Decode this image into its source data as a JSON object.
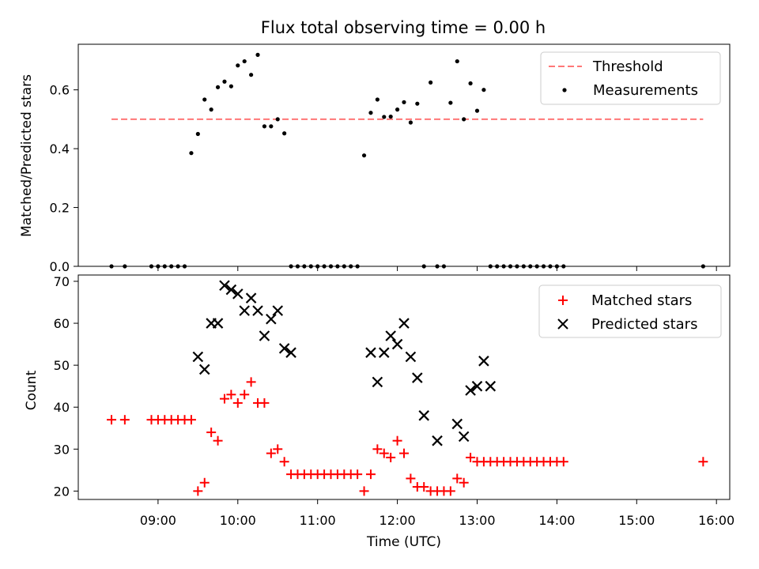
{
  "title": "Flux total observing time = 0.00 h",
  "chart_data": [
    {
      "type": "scatter",
      "title": "Flux total observing time = 0.00 h",
      "xlabel": "",
      "ylabel": "Matched/Predicted stars",
      "xlim": [
        "08:00",
        "16:10"
      ],
      "ylim": [
        0,
        0.755
      ],
      "yticks": [
        0.0,
        0.2,
        0.4,
        0.6
      ],
      "yticks_labels": [
        "0.0",
        "0.2",
        "0.4",
        "0.6"
      ],
      "xticks": [
        "09:00",
        "10:00",
        "11:00",
        "12:00",
        "13:00",
        "14:00",
        "15:00",
        "16:00"
      ],
      "xtick_labels_shown": false,
      "legend": {
        "position": "top-right",
        "entries": [
          "Threshold",
          "Measurements"
        ]
      },
      "series": [
        {
          "name": "Threshold",
          "kind": "dashed-line",
          "color": "#ff7777",
          "x": [
            "08:25",
            "15:50"
          ],
          "y": [
            0.5,
            0.5
          ]
        },
        {
          "name": "Measurements",
          "kind": "points",
          "color": "#000000",
          "x": [
            "08:25",
            "08:35",
            "08:55",
            "09:00",
            "09:05",
            "09:10",
            "09:15",
            "09:20",
            "09:25",
            "09:30",
            "09:35",
            "09:40",
            "09:45",
            "09:50",
            "09:55",
            "10:00",
            "10:05",
            "10:10",
            "10:15",
            "10:20",
            "10:25",
            "10:30",
            "10:35",
            "10:40",
            "10:45",
            "10:50",
            "10:55",
            "11:00",
            "11:05",
            "11:10",
            "11:15",
            "11:20",
            "11:25",
            "11:30",
            "11:35",
            "11:40",
            "11:45",
            "11:50",
            "11:55",
            "12:00",
            "12:05",
            "12:10",
            "12:15",
            "12:20",
            "12:25",
            "12:30",
            "12:35",
            "12:40",
            "12:45",
            "12:50",
            "12:55",
            "13:00",
            "13:05",
            "13:10",
            "13:15",
            "13:20",
            "13:25",
            "13:30",
            "13:35",
            "13:40",
            "13:45",
            "13:50",
            "13:55",
            "14:00",
            "14:05",
            "15:50"
          ],
          "y": [
            0.0,
            0.0,
            0.0,
            0.0,
            0.0,
            0.0,
            0.0,
            0.0,
            0.385,
            0.45,
            0.567,
            0.533,
            0.609,
            0.628,
            0.612,
            0.683,
            0.697,
            0.651,
            0.719,
            0.476,
            0.476,
            0.5,
            0.452,
            0.0,
            0.0,
            0.0,
            0.0,
            0.0,
            0.0,
            0.0,
            0.0,
            0.0,
            0.0,
            0.0,
            0.377,
            0.522,
            0.567,
            0.508,
            0.509,
            0.533,
            0.558,
            0.489,
            0.553,
            0.0,
            0.625,
            0.0,
            0.0,
            0.556,
            0.697,
            0.5,
            0.622,
            0.529,
            0.6,
            0.0,
            0.0,
            0.0,
            0.0,
            0.0,
            0.0,
            0.0,
            0.0,
            0.0,
            0.0,
            0.0,
            0.0,
            0.0
          ]
        }
      ]
    },
    {
      "type": "scatter",
      "xlabel": "Time (UTC)",
      "ylabel": "Count",
      "xlim": [
        "08:00",
        "16:10"
      ],
      "ylim": [
        18,
        71.5
      ],
      "yticks": [
        20,
        30,
        40,
        50,
        60,
        70
      ],
      "yticks_labels": [
        "20",
        "30",
        "40",
        "50",
        "60",
        "70"
      ],
      "xticks": [
        "09:00",
        "10:00",
        "11:00",
        "12:00",
        "13:00",
        "14:00",
        "15:00",
        "16:00"
      ],
      "xtick_labels": [
        "09:00",
        "10:00",
        "11:00",
        "12:00",
        "13:00",
        "14:00",
        "15:00",
        "16:00"
      ],
      "legend": {
        "position": "top-right",
        "entries": [
          "Matched stars",
          "Predicted stars"
        ]
      },
      "series": [
        {
          "name": "Matched stars",
          "marker": "+",
          "color": "#ff0000",
          "x": [
            "08:25",
            "08:35",
            "08:55",
            "09:00",
            "09:05",
            "09:10",
            "09:15",
            "09:20",
            "09:25",
            "09:30",
            "09:35",
            "09:40",
            "09:45",
            "09:50",
            "09:55",
            "10:00",
            "10:05",
            "10:10",
            "10:15",
            "10:20",
            "10:25",
            "10:30",
            "10:35",
            "10:40",
            "10:45",
            "10:50",
            "10:55",
            "11:00",
            "11:05",
            "11:10",
            "11:15",
            "11:20",
            "11:25",
            "11:30",
            "11:35",
            "11:40",
            "11:45",
            "11:50",
            "11:55",
            "12:00",
            "12:05",
            "12:10",
            "12:15",
            "12:20",
            "12:25",
            "12:30",
            "12:35",
            "12:40",
            "12:45",
            "12:50",
            "12:55",
            "13:00",
            "13:05",
            "13:10",
            "13:15",
            "13:20",
            "13:25",
            "13:30",
            "13:35",
            "13:40",
            "13:45",
            "13:50",
            "13:55",
            "14:00",
            "14:05",
            "15:50"
          ],
          "y": [
            37,
            37,
            37,
            37,
            37,
            37,
            37,
            37,
            37,
            20,
            22,
            34,
            32,
            42,
            43,
            41,
            43,
            46,
            41,
            41,
            29,
            30,
            27,
            24,
            24,
            24,
            24,
            24,
            24,
            24,
            24,
            24,
            24,
            24,
            20,
            24,
            30,
            29,
            28,
            32,
            29,
            23,
            21,
            21,
            20,
            20,
            20,
            20,
            23,
            22,
            28,
            27,
            27,
            27,
            27,
            27,
            27,
            27,
            27,
            27,
            27,
            27,
            27,
            27,
            27,
            27
          ]
        },
        {
          "name": "Predicted stars",
          "marker": "x",
          "color": "#000000",
          "x": [
            "09:30",
            "09:35",
            "09:40",
            "09:45",
            "09:50",
            "09:55",
            "10:00",
            "10:05",
            "10:10",
            "10:15",
            "10:20",
            "10:25",
            "10:30",
            "10:35",
            "10:40",
            "11:40",
            "11:45",
            "11:50",
            "11:55",
            "12:00",
            "12:05",
            "12:10",
            "12:15",
            "12:20",
            "12:30",
            "12:45",
            "12:50",
            "12:55",
            "13:00",
            "13:05",
            "13:10"
          ],
          "y": [
            52,
            49,
            60,
            60,
            69,
            68,
            67,
            63,
            66,
            63,
            57,
            61,
            63,
            54,
            53,
            53,
            46,
            53,
            57,
            55,
            60,
            52,
            47,
            38,
            32,
            36,
            33,
            44,
            45,
            51,
            45
          ]
        }
      ]
    }
  ]
}
